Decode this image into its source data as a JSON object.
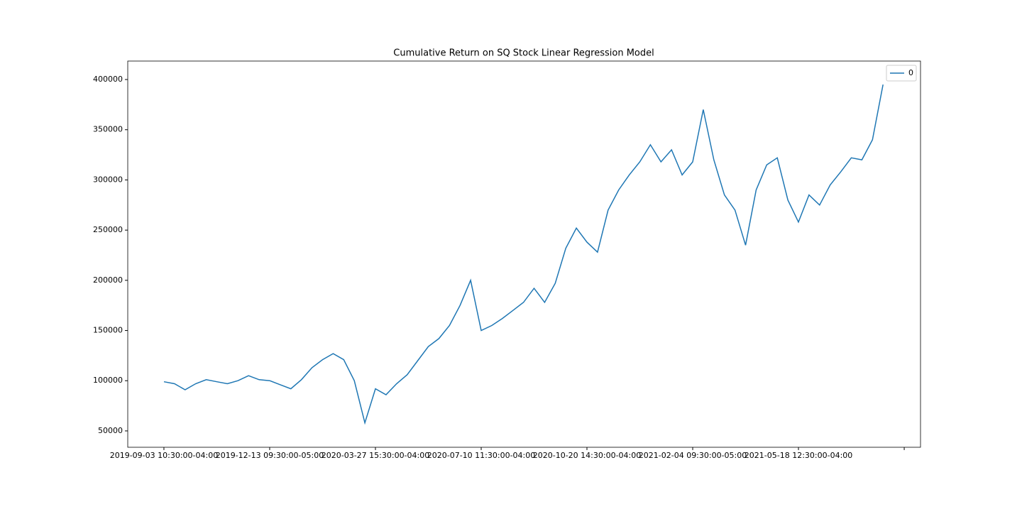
{
  "chart_data": {
    "type": "line",
    "title": "Cumulative Return on SQ Stock Linear Regression Model",
    "x": [
      0,
      50,
      100,
      150,
      200,
      250,
      300,
      350,
      400,
      450,
      500,
      550,
      600,
      650,
      700,
      750,
      800,
      850,
      900,
      950,
      1000,
      1050,
      1100,
      1150,
      1200,
      1250,
      1300,
      1350,
      1400,
      1450,
      1500,
      1550,
      1600,
      1650,
      1700,
      1750,
      1800,
      1850,
      1900,
      1950,
      2000,
      2050,
      2100,
      2150,
      2200,
      2250,
      2300,
      2350,
      2400,
      2450,
      2500,
      2550,
      2600,
      2650,
      2700,
      2750,
      2800,
      2850,
      2900,
      2950,
      3000,
      3050,
      3100,
      3150,
      3200,
      3250,
      3300,
      3350,
      3400
    ],
    "series": [
      {
        "name": "0",
        "color": "#1f77b4",
        "values": [
          99000,
          97000,
          91000,
          97000,
          101000,
          99000,
          97000,
          100000,
          105000,
          101000,
          100000,
          96000,
          92000,
          101000,
          113000,
          121000,
          127000,
          121000,
          100000,
          58000,
          92000,
          86000,
          97000,
          106000,
          120000,
          134000,
          142000,
          155000,
          175000,
          200000,
          150000,
          155000,
          162000,
          170000,
          178000,
          192000,
          178000,
          197000,
          232000,
          252000,
          238000,
          228000,
          270000,
          290000,
          305000,
          318000,
          335000,
          318000,
          330000,
          305000,
          318000,
          370000,
          320000,
          285000,
          270000,
          235000,
          290000,
          315000,
          322000,
          280000,
          258000,
          285000,
          275000,
          295000,
          308000,
          322000,
          320000,
          340000,
          395000
        ]
      }
    ],
    "xlim": [
      -171,
      3577
    ],
    "xticks": [
      {
        "value": 0,
        "label": "2019-09-03 10:30:00-04:00"
      },
      {
        "value": 500,
        "label": "2019-12-13 09:30:00-05:00"
      },
      {
        "value": 1000,
        "label": "2020-03-27 15:30:00-04:00"
      },
      {
        "value": 1500,
        "label": "2020-07-10 11:30:00-04:00"
      },
      {
        "value": 2000,
        "label": "2020-10-20 14:30:00-04:00"
      },
      {
        "value": 2500,
        "label": "2021-02-04 09:30:00-05:00"
      },
      {
        "value": 3000,
        "label": "2021-05-18 12:30:00-04:00"
      },
      {
        "value": 3500,
        "label": null
      }
    ],
    "ylim": [
      33700,
      418400
    ],
    "yticks": [
      50000,
      100000,
      150000,
      200000,
      250000,
      300000,
      350000,
      400000
    ],
    "grid": false,
    "legend": "upper right"
  }
}
